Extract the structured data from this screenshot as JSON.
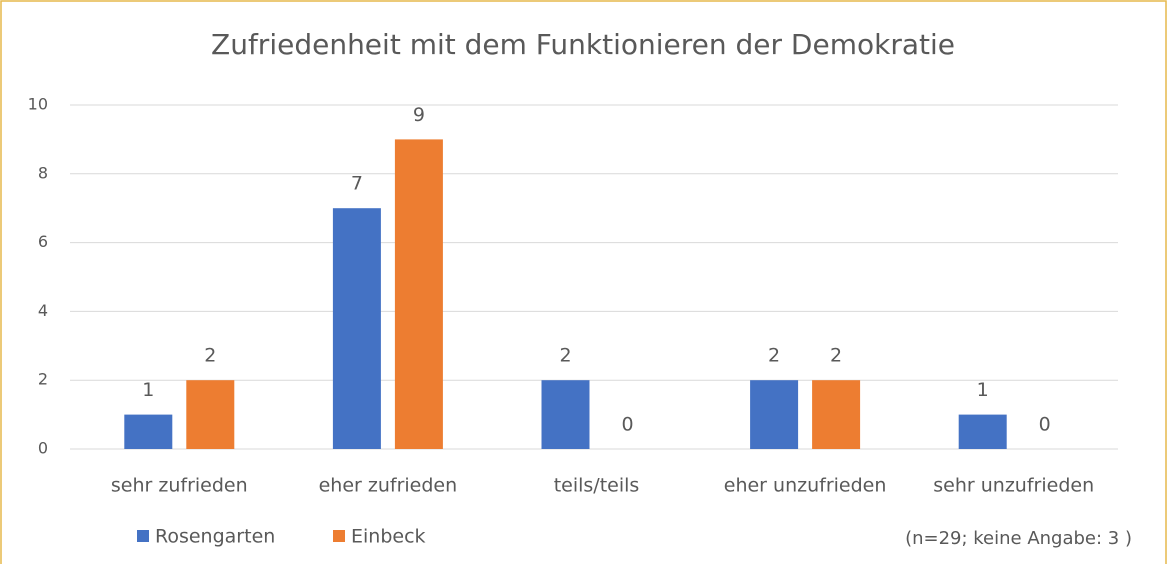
{
  "chart_data": {
    "type": "bar",
    "title": "Zufriedenheit mit dem Funktionieren der Demokratie",
    "categories": [
      "sehr zufrieden",
      "eher zufrieden",
      "teils/teils",
      "eher unzufrieden",
      "sehr unzufrieden"
    ],
    "series": [
      {
        "name": "Rosengarten",
        "color": "#4472c4",
        "values": [
          1,
          7,
          2,
          2,
          1
        ]
      },
      {
        "name": "Einbeck",
        "color": "#ed7d31",
        "values": [
          2,
          9,
          0,
          2,
          0
        ]
      }
    ],
    "ylim": [
      0,
      10
    ],
    "yticks": [
      0,
      2,
      4,
      6,
      8,
      10
    ],
    "grid": true,
    "annotation": "(n=29; keine Angabe: 3 )"
  }
}
